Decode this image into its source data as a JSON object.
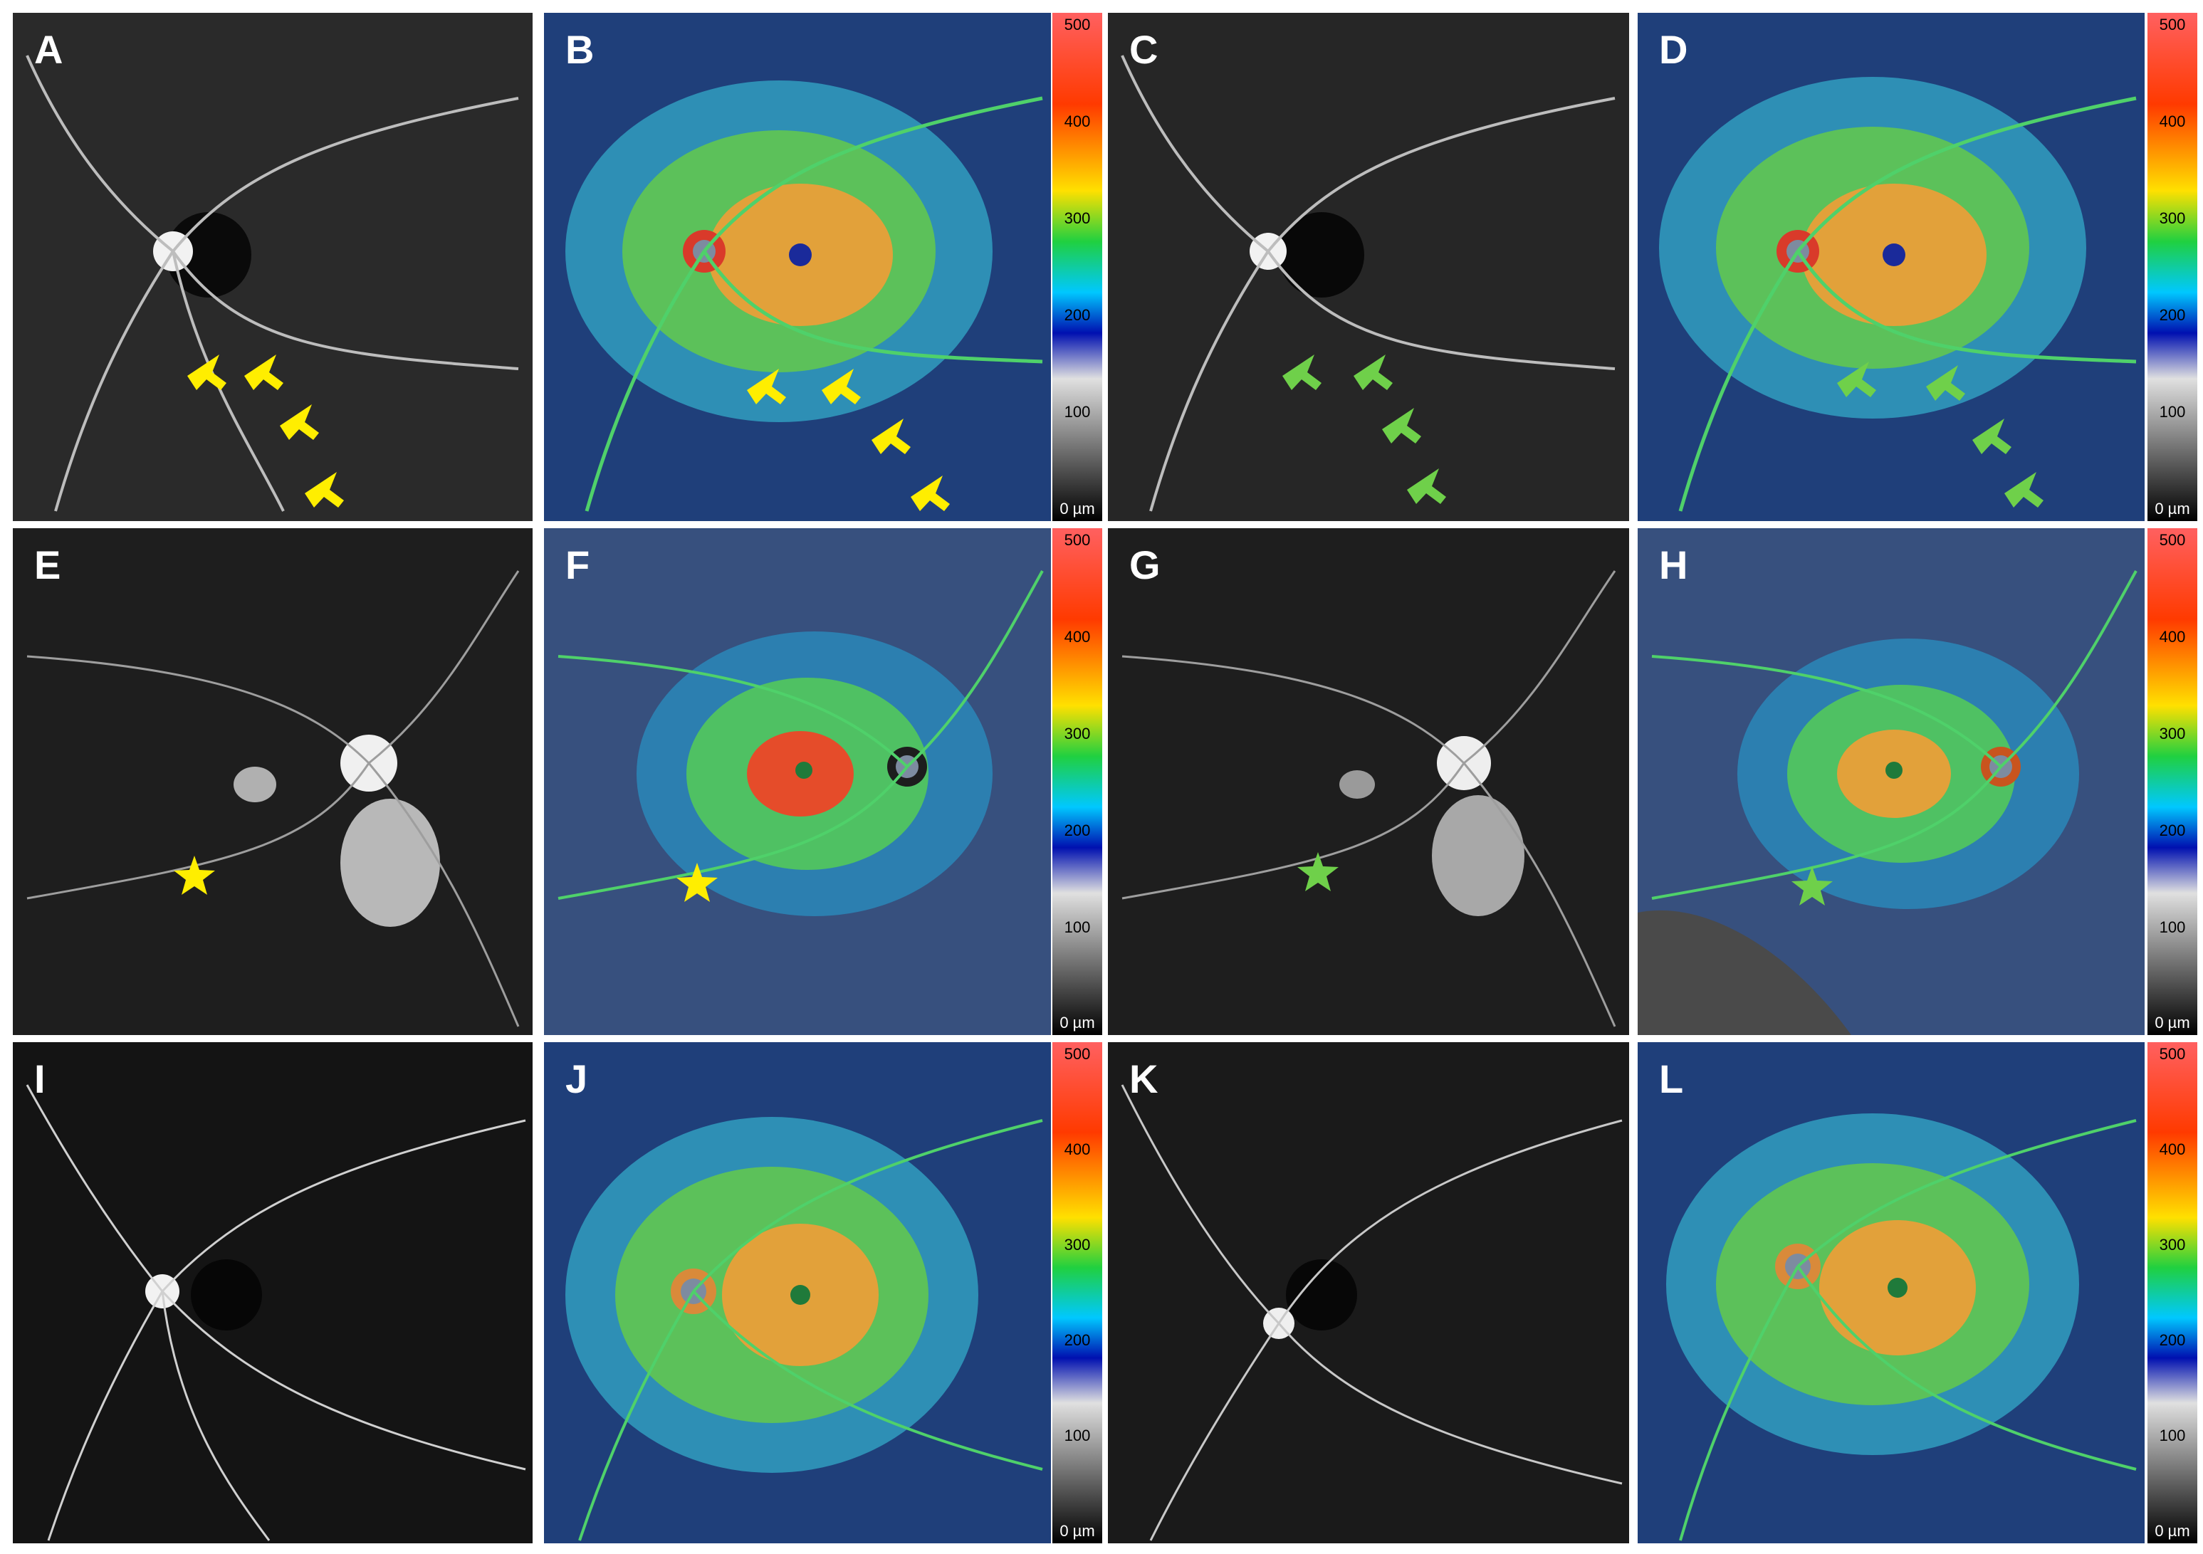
{
  "panels": [
    {
      "label": "A",
      "kind": "angiogram",
      "markers": "yellow-arrows"
    },
    {
      "label": "B",
      "kind": "thickness-map",
      "markers": "yellow-arrows"
    },
    {
      "label": "C",
      "kind": "angiogram",
      "markers": "green-arrows"
    },
    {
      "label": "D",
      "kind": "thickness-map",
      "markers": "green-arrows"
    },
    {
      "label": "E",
      "kind": "angiogram",
      "markers": "yellow-star"
    },
    {
      "label": "F",
      "kind": "thickness-map",
      "markers": "yellow-star"
    },
    {
      "label": "G",
      "kind": "angiogram",
      "markers": "green-star"
    },
    {
      "label": "H",
      "kind": "thickness-map",
      "markers": "green-star"
    },
    {
      "label": "I",
      "kind": "angiogram",
      "markers": "none"
    },
    {
      "label": "J",
      "kind": "thickness-map",
      "markers": "none"
    },
    {
      "label": "K",
      "kind": "angiogram",
      "markers": "none"
    },
    {
      "label": "L",
      "kind": "thickness-map",
      "markers": "none"
    }
  ],
  "scale": {
    "ticks": [
      "500",
      "400",
      "300",
      "200",
      "100",
      "0 µm"
    ]
  },
  "colors": {
    "yellow_marker": "#ffee00",
    "green_marker": "#6fd04a"
  }
}
